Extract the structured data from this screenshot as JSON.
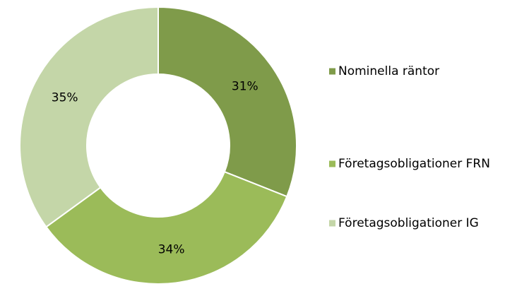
{
  "chart_data": {
    "type": "donut",
    "categories": [
      "Nominella räntor",
      "Företagsobligationer FRN",
      "Företagsobligationer IG"
    ],
    "values": [
      31,
      34,
      35
    ],
    "value_labels": [
      "31%",
      "34%",
      "35%"
    ],
    "colors": [
      "#7f9b4a",
      "#9bbb59",
      "#c4d6a8"
    ],
    "legend": "right"
  }
}
